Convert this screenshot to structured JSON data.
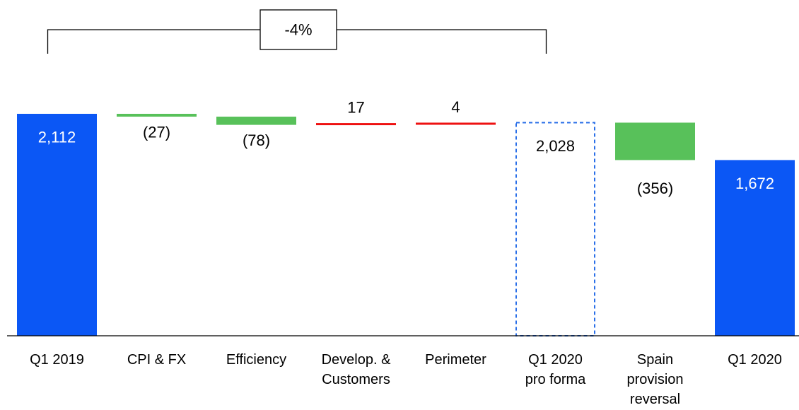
{
  "chart_data": {
    "type": "bar",
    "subtype": "waterfall",
    "categories": [
      "Q1 2019",
      "CPI & FX",
      "Efficiency",
      "Develop. & Customers",
      "Perimeter",
      "Q1 2020 pro forma",
      "Spain provision reversal",
      "Q1 2020"
    ],
    "category_lines": [
      [
        "Q1 2019"
      ],
      [
        "CPI & FX"
      ],
      [
        "Efficiency"
      ],
      [
        "Develop. &",
        "Customers"
      ],
      [
        "Perimeter"
      ],
      [
        "Q1 2020",
        "pro forma"
      ],
      [
        "Spain",
        "provision",
        "reversal"
      ],
      [
        "Q1 2020"
      ]
    ],
    "bar_kinds": [
      "total",
      "delta",
      "delta",
      "delta",
      "delta",
      "total-dashed",
      "delta",
      "total"
    ],
    "values": [
      2112,
      -27,
      -78,
      17,
      4,
      2028,
      -356,
      1672
    ],
    "data_labels": [
      "2,112",
      "(27)",
      "(78)",
      "17",
      "4",
      "2,028",
      "(356)",
      "1,672"
    ],
    "bracket": {
      "label": "-4%",
      "from": "Q1 2019",
      "to": "Q1 2020 pro forma"
    },
    "ylim": [
      0,
      2112
    ],
    "grid": false,
    "legend": "none",
    "colors": {
      "total": "#0b57f5",
      "decrease": "#58c15a",
      "increase": "#ee1111",
      "dashed": "#2a6fe8"
    }
  }
}
